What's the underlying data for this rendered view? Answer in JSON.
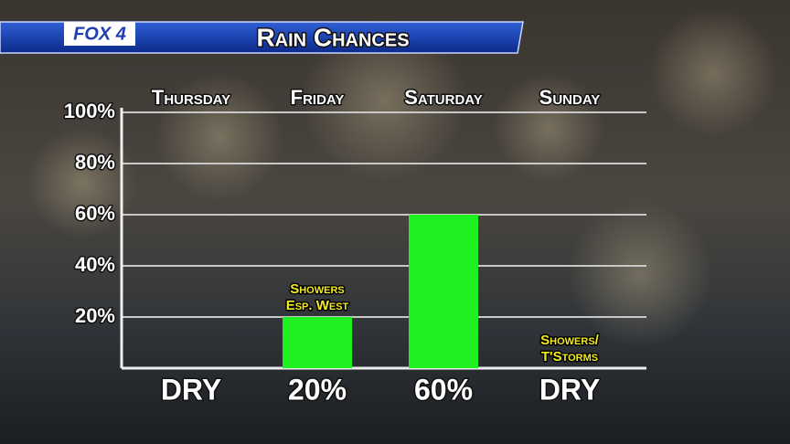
{
  "chart_data": {
    "type": "bar",
    "brand": "FOX 4",
    "title": "Rain Chances",
    "categories": [
      "Thursday",
      "Friday",
      "Saturday",
      "Sunday"
    ],
    "values": [
      0,
      20,
      60,
      0
    ],
    "value_labels": [
      "DRY",
      "20%",
      "60%",
      "DRY"
    ],
    "annotations": [
      null,
      [
        "Showers",
        "Esp. West"
      ],
      null,
      [
        "Showers/",
        "T'Storms"
      ]
    ],
    "color": "#1ff01f",
    "ylim": [
      0,
      100
    ],
    "yticks": [
      {
        "value": 20,
        "label": "20%"
      },
      {
        "value": 40,
        "label": "40%"
      },
      {
        "value": 60,
        "label": "60%"
      },
      {
        "value": 80,
        "label": "80%"
      },
      {
        "value": 100,
        "label": "100%"
      }
    ],
    "grid": true
  }
}
